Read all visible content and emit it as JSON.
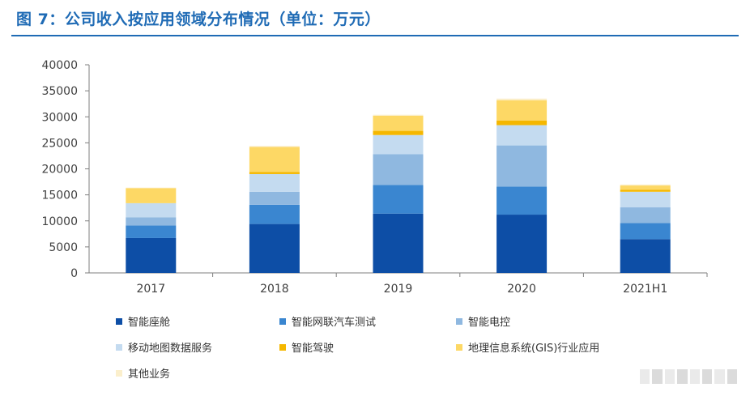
{
  "figure": {
    "title": "图 7：公司收入按应用领域分布情况（单位：万元）"
  },
  "chart_data": {
    "type": "bar",
    "stacked": true,
    "categories": [
      "2017",
      "2018",
      "2019",
      "2020",
      "2021H1"
    ],
    "ylim": [
      0,
      40000
    ],
    "yticks": [
      0,
      5000,
      10000,
      15000,
      20000,
      25000,
      30000,
      35000,
      40000
    ],
    "xlabel": "",
    "ylabel": "",
    "legend_position": "bottom",
    "series": [
      {
        "name": "智能座舱",
        "color": "#0d4ea6",
        "values": [
          6700,
          9400,
          11400,
          11200,
          6500
        ]
      },
      {
        "name": "智能网联汽车测试",
        "color": "#3a86d0",
        "values": [
          2400,
          3700,
          5500,
          5400,
          3100
        ]
      },
      {
        "name": "智能电控",
        "color": "#8fb8e0",
        "values": [
          1600,
          2500,
          5900,
          7900,
          3000
        ]
      },
      {
        "name": "移动地图数据服务",
        "color": "#c4dbf0",
        "values": [
          2700,
          3400,
          3700,
          3900,
          3000
        ]
      },
      {
        "name": "智能驾驶",
        "color": "#f5b700",
        "values": [
          0,
          400,
          800,
          900,
          400
        ]
      },
      {
        "name": "地理信息系统(GIS)行业应用",
        "color": "#fdd865",
        "values": [
          2900,
          4800,
          2900,
          3900,
          800
        ]
      },
      {
        "name": "其他业务",
        "color": "#fbefcc",
        "values": [
          100,
          200,
          200,
          300,
          200
        ]
      }
    ]
  }
}
